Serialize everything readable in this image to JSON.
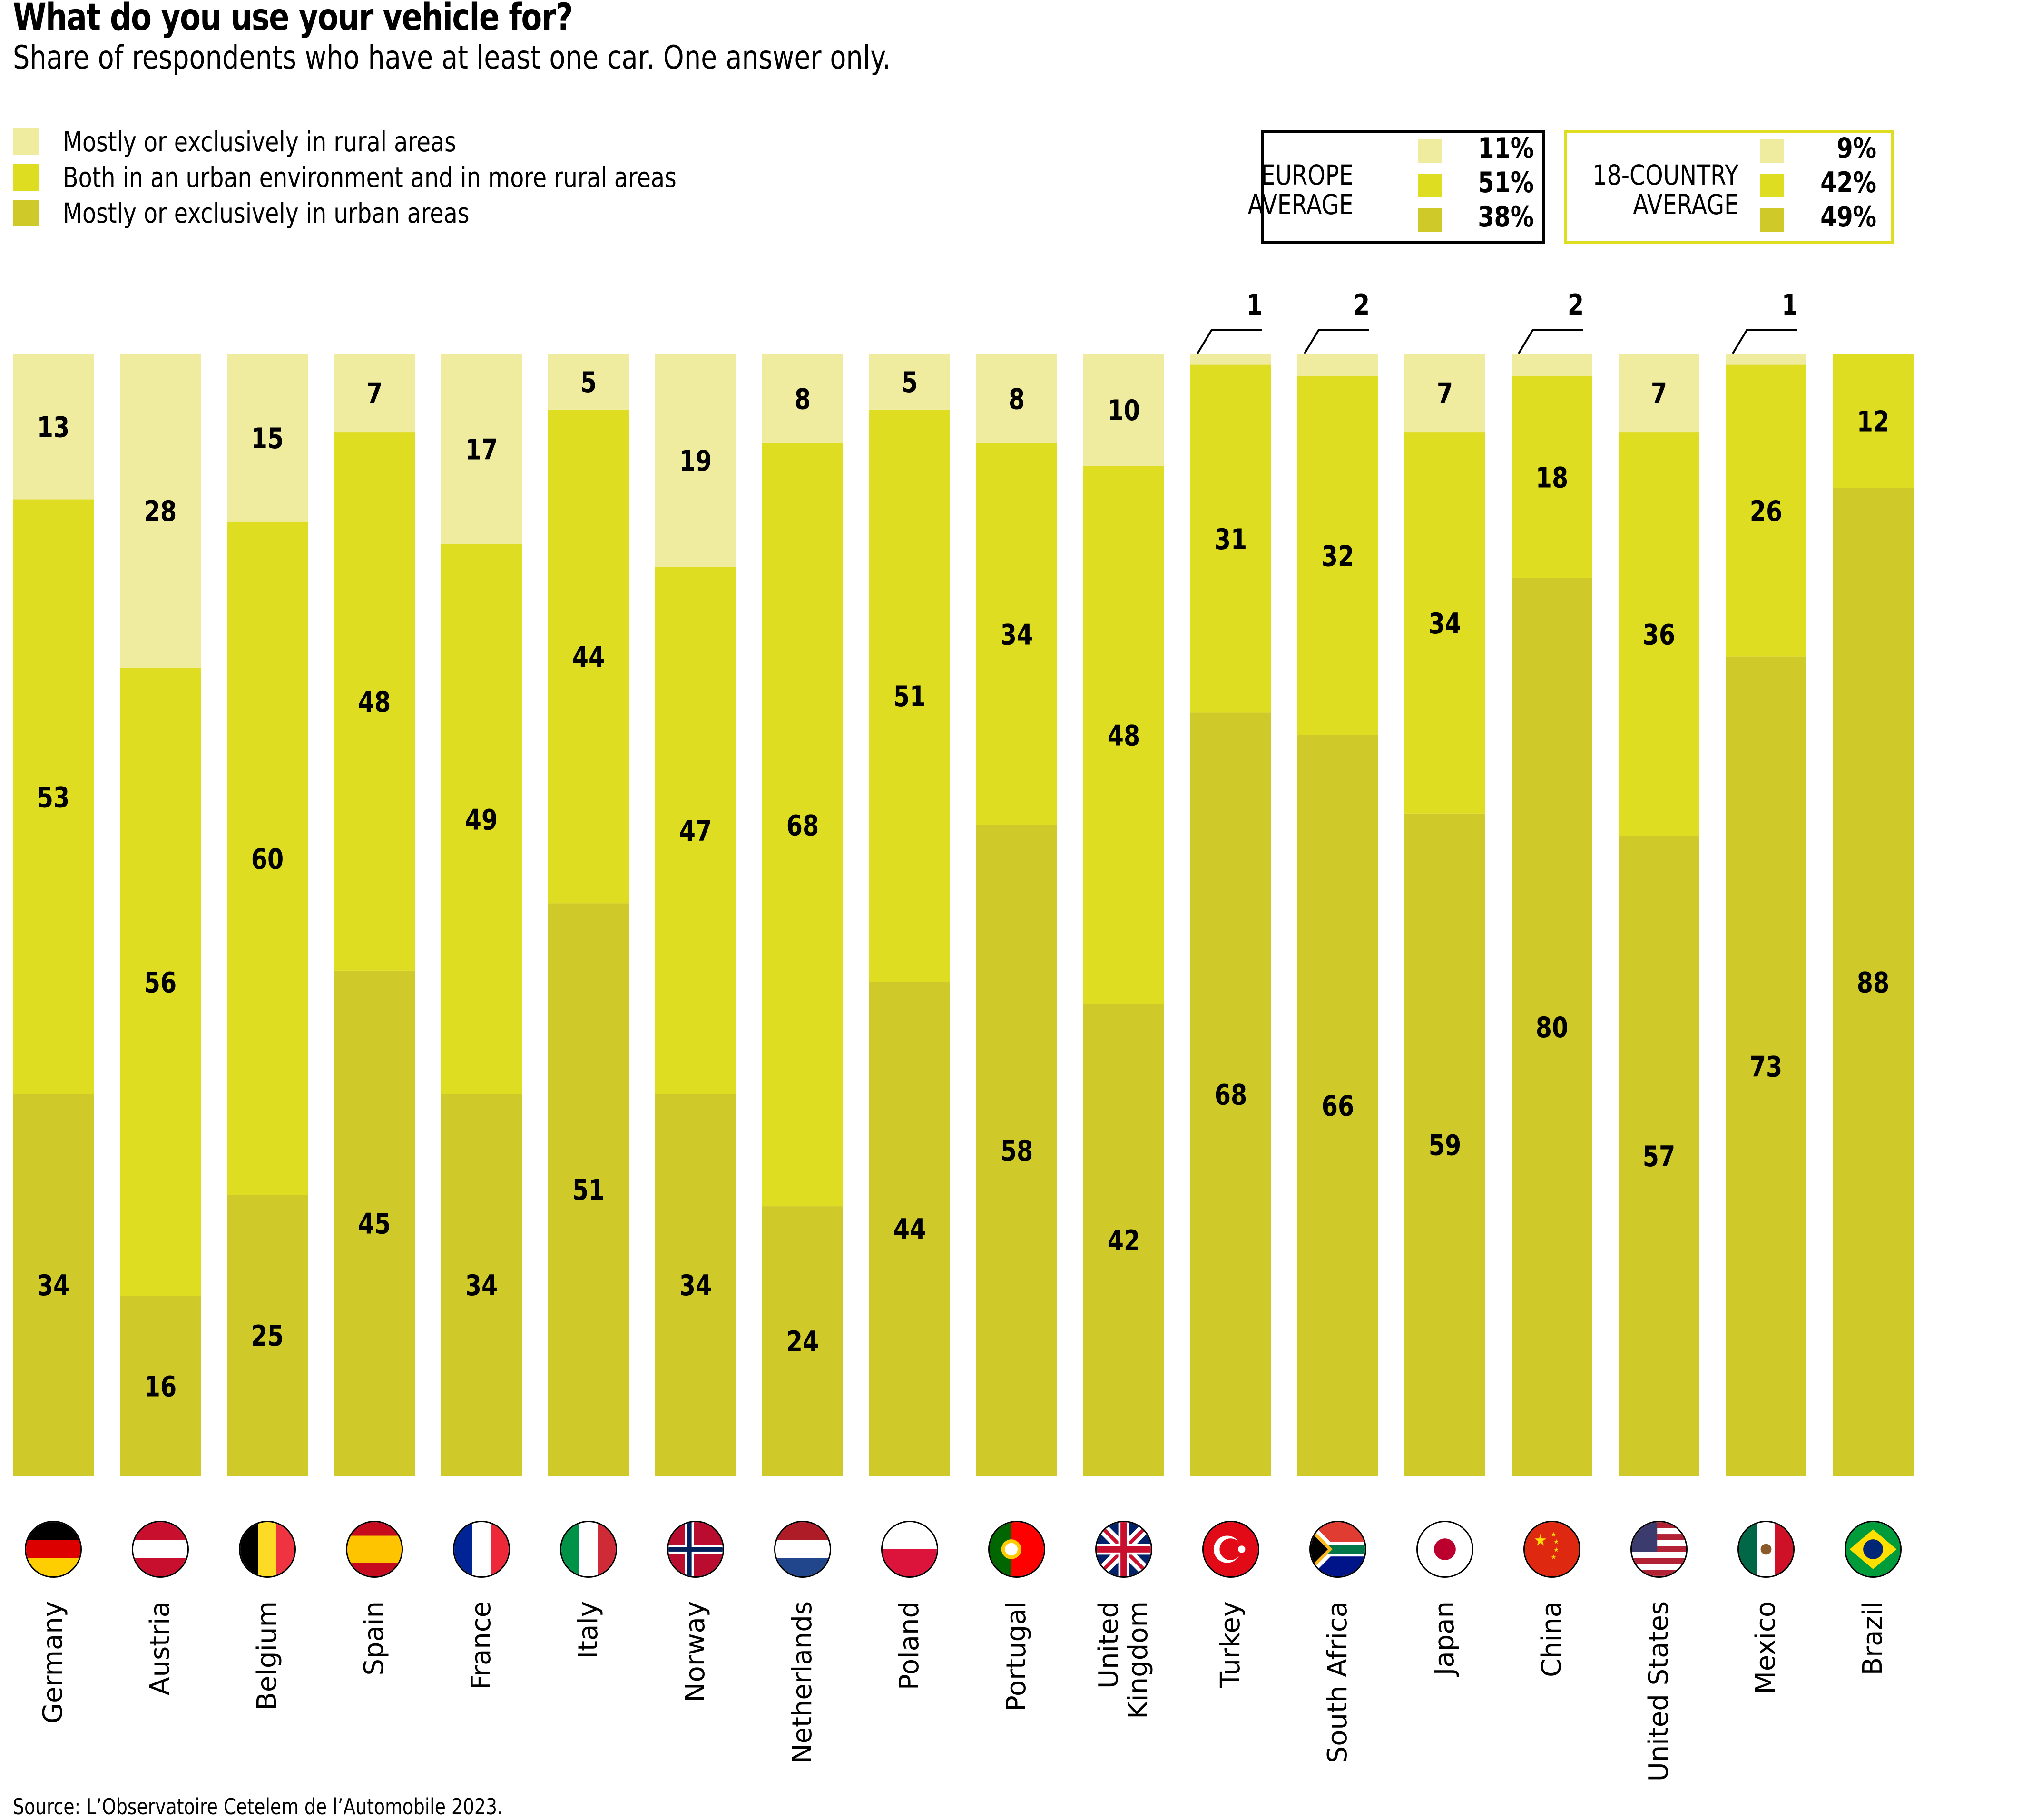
{
  "header": {
    "title": "What do you use your vehicle for?",
    "subtitle": "Share of respondents who have at least one car. One answer only."
  },
  "colors": {
    "rural": "#efeca0",
    "both": "#dedd21",
    "urban": "#cfca2a",
    "europe_box_border": "#000000",
    "world_box_border": "#dedd21"
  },
  "legend": [
    {
      "key": "rural",
      "label": "Mostly or exclusively in rural areas"
    },
    {
      "key": "both",
      "label": "Both in an urban environment and in more rural areas"
    },
    {
      "key": "urban",
      "label": "Mostly or exclusively in urban areas"
    }
  ],
  "averages": {
    "europe": {
      "title_line1": "EUROPE",
      "title_line2": "AVERAGE",
      "rural": "11%",
      "both": "51%",
      "urban": "38%"
    },
    "world": {
      "title_line1": "18-COUNTRY",
      "title_line2": "AVERAGE",
      "rural": "9%",
      "both": "42%",
      "urban": "49%"
    }
  },
  "source": "Source: L’Observatoire Cetelem de l’Automobile 2023.",
  "chart_data": {
    "type": "bar",
    "stacked": true,
    "title": "What do you use your vehicle for?",
    "subtitle": "Share of respondents who have at least one car. One answer only.",
    "xlabel": "",
    "ylabel": "",
    "ylim": [
      0,
      100
    ],
    "grid": false,
    "legend_position": "top-left",
    "categories": [
      "Germany",
      "Austria",
      "Belgium",
      "Spain",
      "France",
      "Italy",
      "Norway",
      "Netherlands",
      "Poland",
      "Portugal",
      "United\nKingdom",
      "Turkey",
      "South Africa",
      "Japan",
      "China",
      "United States",
      "Mexico",
      "Brazil"
    ],
    "flags": [
      "de",
      "at",
      "be",
      "es",
      "fr",
      "it",
      "no",
      "nl",
      "pl",
      "pt",
      "gb",
      "tr",
      "za",
      "jp",
      "cn",
      "us",
      "mx",
      "br"
    ],
    "series": [
      {
        "name": "Mostly or exclusively in urban areas",
        "key": "urban",
        "values": [
          34,
          16,
          25,
          45,
          34,
          51,
          34,
          24,
          44,
          58,
          42,
          68,
          66,
          59,
          80,
          57,
          73,
          88
        ]
      },
      {
        "name": "Both in an urban environment and in more rural areas",
        "key": "both",
        "values": [
          53,
          56,
          60,
          48,
          49,
          44,
          47,
          68,
          51,
          34,
          48,
          31,
          32,
          34,
          18,
          36,
          26,
          12
        ]
      },
      {
        "name": "Mostly or exclusively in rural areas",
        "key": "rural",
        "values": [
          13,
          28,
          15,
          7,
          17,
          5,
          19,
          8,
          5,
          8,
          10,
          1,
          2,
          7,
          2,
          7,
          1,
          0
        ]
      }
    ],
    "callout_labels": [
      "Turkey",
      "South Africa",
      "China",
      "Mexico"
    ]
  }
}
